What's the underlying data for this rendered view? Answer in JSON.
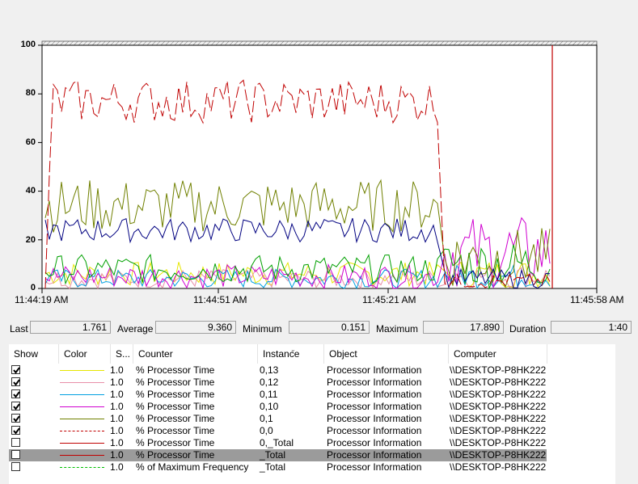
{
  "graph": {
    "y_ticks": [
      "100",
      "80",
      "60",
      "40",
      "20",
      "0"
    ],
    "x_ticks": [
      "11:44:19 AM",
      "11:44:51 AM",
      "11:45:21 AM",
      "11:45:58 AM"
    ]
  },
  "stats": {
    "last_label": "Last",
    "last_value": "1.761",
    "average_label": "Average",
    "average_value": "9.360",
    "minimum_label": "Minimum",
    "minimum_value": "0.151",
    "maximum_label": "Maximum",
    "maximum_value": "17.890",
    "duration_label": "Duration",
    "duration_value": "1:40"
  },
  "table": {
    "headers": {
      "show": "Show",
      "color": "Color",
      "scale": "S...",
      "counter": "Counter",
      "instance": "Instance",
      "object": "Object",
      "computer": "Computer"
    },
    "rows": [
      {
        "checked": true,
        "color": "#e6e600",
        "dash": "none",
        "scale": "1.0",
        "counter": "% Processor Time",
        "instance": "0,13",
        "object": "Processor Information",
        "computer": "\\\\DESKTOP-P8HK222"
      },
      {
        "checked": true,
        "color": "#e88fa8",
        "dash": "none",
        "scale": "1.0",
        "counter": "% Processor Time",
        "instance": "0,12",
        "object": "Processor Information",
        "computer": "\\\\DESKTOP-P8HK222"
      },
      {
        "checked": true,
        "color": "#00a0e0",
        "dash": "none",
        "scale": "1.0",
        "counter": "% Processor Time",
        "instance": "0,11",
        "object": "Processor Information",
        "computer": "\\\\DESKTOP-P8HK222"
      },
      {
        "checked": true,
        "color": "#d000d0",
        "dash": "none",
        "scale": "1.0",
        "counter": "% Processor Time",
        "instance": "0,10",
        "object": "Processor Information",
        "computer": "\\\\DESKTOP-P8HK222"
      },
      {
        "checked": true,
        "color": "#708000",
        "dash": "none",
        "scale": "1.0",
        "counter": "% Processor Time",
        "instance": "0,1",
        "object": "Processor Information",
        "computer": "\\\\DESKTOP-P8HK222"
      },
      {
        "checked": true,
        "color": "#c00000",
        "dash": "dash",
        "scale": "1.0",
        "counter": "% Processor Time",
        "instance": "0,0",
        "object": "Processor Information",
        "computer": "\\\\DESKTOP-P8HK222"
      },
      {
        "checked": false,
        "color": "#c00000",
        "dash": "none",
        "scale": "1.0",
        "counter": "% Processor Time",
        "instance": "0,_Total",
        "object": "Processor Information",
        "computer": "\\\\DESKTOP-P8HK222"
      },
      {
        "checked": false,
        "color": "#c00000",
        "dash": "none",
        "scale": "1.0",
        "counter": "% Processor Time",
        "instance": "_Total",
        "object": "Processor Information",
        "computer": "\\\\DESKTOP-P8HK222",
        "selected": true
      },
      {
        "checked": false,
        "color": "#00c000",
        "dash": "dash",
        "scale": "1.0",
        "counter": "% of Maximum Frequency",
        "instance": "_Total",
        "object": "Processor Information",
        "computer": "\\\\DESKTOP-P8HK222"
      }
    ]
  },
  "colors": {
    "selected_row": "#9b9b9b",
    "plot_border": "#000000",
    "timeline_bar": "#c00000"
  }
}
